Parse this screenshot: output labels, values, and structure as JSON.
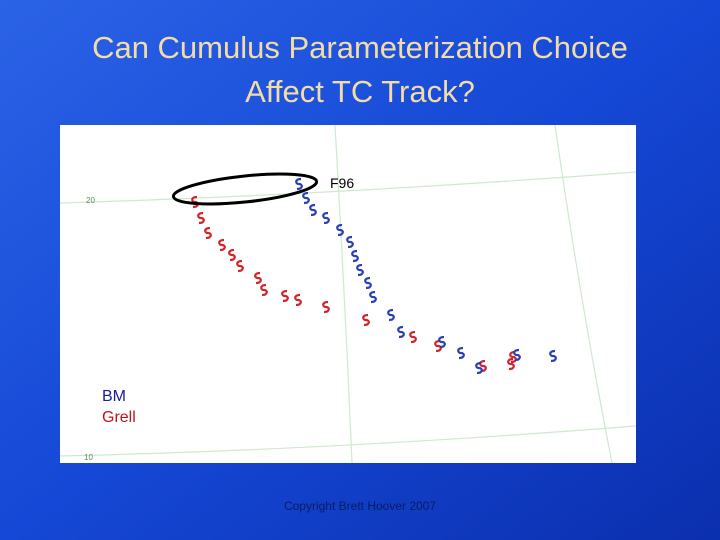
{
  "slide": {
    "title": [
      "Can Cumulus Parameterization Choice",
      "Affect TC Track?"
    ],
    "map": {
      "label": "F96",
      "lat_labels": [
        "20",
        "10"
      ],
      "legend": [
        "BM",
        "Grell"
      ]
    },
    "footer": "Copyright Brett Hoover 2007"
  }
}
